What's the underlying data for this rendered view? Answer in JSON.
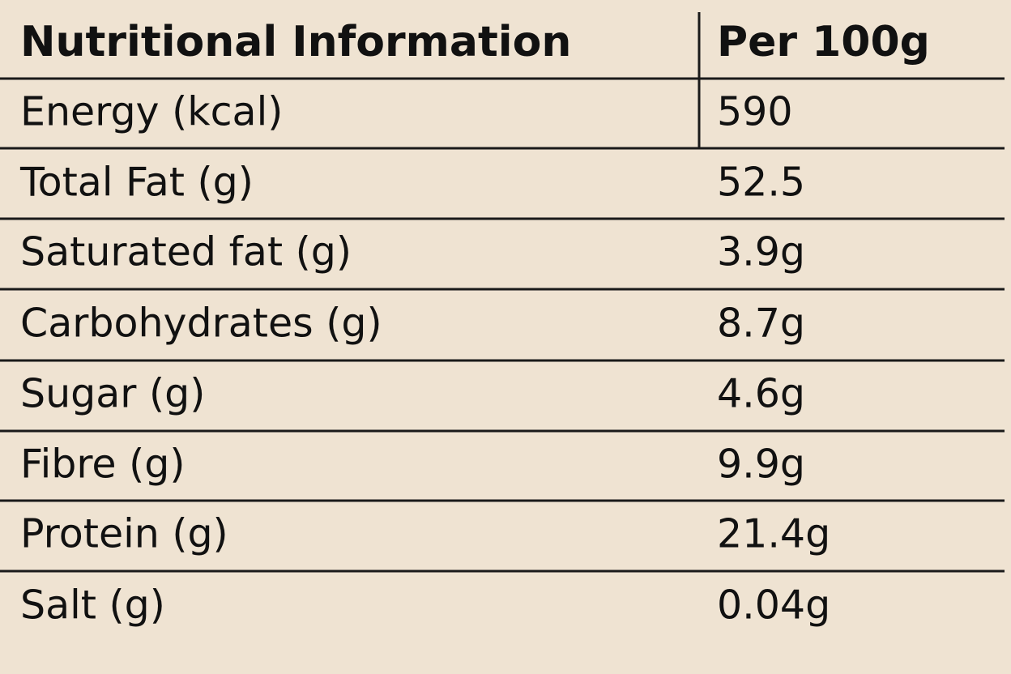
{
  "table": {
    "header": [
      "Nutritional Information",
      "Per 100g"
    ],
    "rows": [
      [
        "Energy (kcal)",
        "590"
      ],
      [
        "Total Fat (g)",
        "52.5"
      ],
      [
        "Saturated fat (g)",
        "3.9g"
      ],
      [
        "Carbohydrates (g)",
        "8.7g"
      ],
      [
        "Sugar (g)",
        "4.6g"
      ],
      [
        "Fibre (g)",
        "9.9g"
      ],
      [
        "Protein (g)",
        "21.4g"
      ],
      [
        "Salt (g)",
        "0.04g"
      ]
    ]
  }
}
